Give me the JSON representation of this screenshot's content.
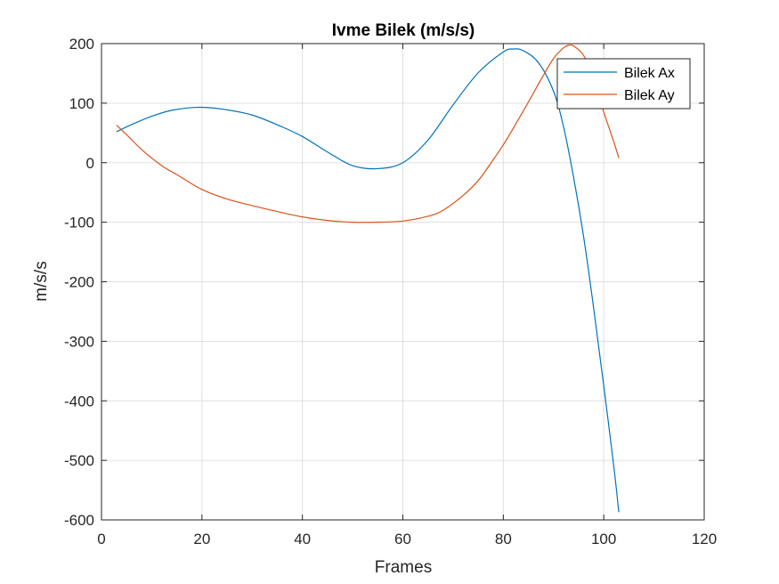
{
  "chart_data": {
    "type": "line",
    "title": "Ivme Bilek (m/s/s)",
    "xlabel": "Frames",
    "ylabel": "m/s/s",
    "xlim": [
      0,
      120
    ],
    "ylim": [
      -600,
      200
    ],
    "xticks": [
      0,
      20,
      40,
      60,
      80,
      100,
      120
    ],
    "yticks": [
      -600,
      -500,
      -400,
      -300,
      -200,
      -100,
      0,
      100,
      200
    ],
    "grid": true,
    "legend_position": "top-right",
    "series": [
      {
        "name": "Bilek Ax",
        "color": "#0072bd",
        "x": [
          3,
          6,
          10,
          14,
          19,
          24,
          30,
          36,
          40,
          45,
          50,
          55,
          60,
          65,
          70,
          75,
          80,
          82,
          84,
          87,
          90,
          92,
          94,
          96,
          98,
          100,
          102,
          103
        ],
        "y": [
          52,
          64,
          78,
          88,
          93,
          90,
          80,
          60,
          44,
          18,
          -5,
          -10,
          0,
          38,
          97,
          151,
          186,
          191,
          188,
          168,
          120,
          60,
          -25,
          -125,
          -245,
          -375,
          -510,
          -587
        ]
      },
      {
        "name": "Bilek Ay",
        "color": "#d95319",
        "x": [
          3,
          5,
          8,
          12,
          15,
          20,
          25,
          30,
          35,
          40,
          45,
          50,
          55,
          60,
          65,
          68,
          72,
          75,
          78,
          80,
          82,
          85,
          88,
          90,
          92,
          93,
          94,
          96,
          98,
          100,
          102,
          103
        ],
        "y": [
          63,
          47,
          22,
          -5,
          -20,
          -45,
          -61,
          -72,
          -82,
          -91,
          -97,
          -100,
          -100,
          -98,
          -90,
          -80,
          -55,
          -30,
          5,
          30,
          58,
          102,
          147,
          175,
          193,
          197,
          196,
          180,
          140,
          85,
          35,
          8
        ]
      }
    ]
  }
}
